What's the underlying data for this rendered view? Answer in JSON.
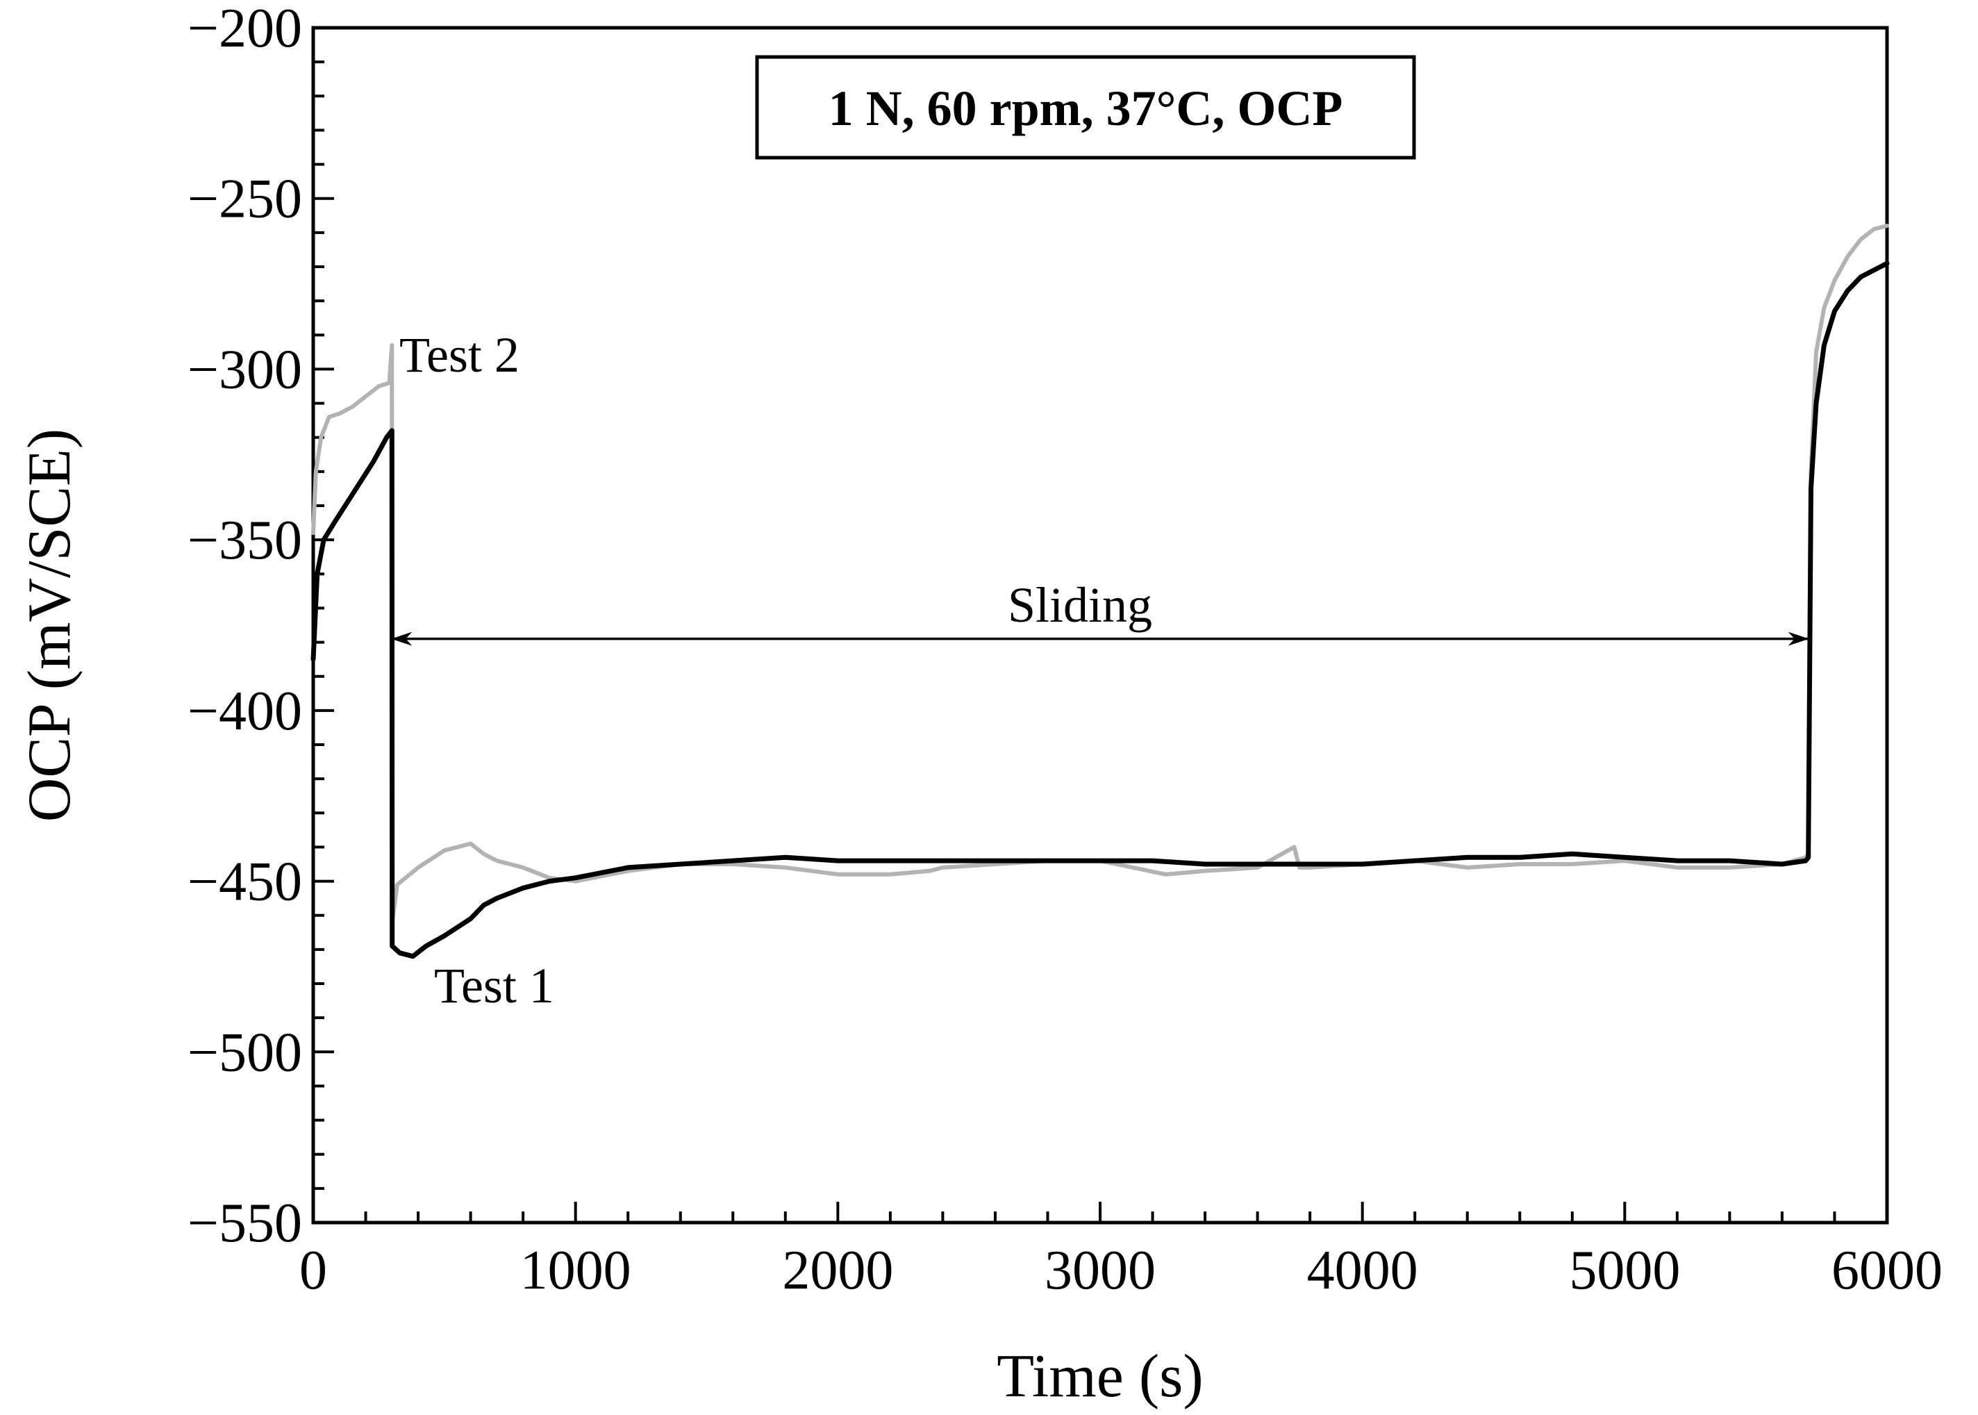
{
  "chart_data": {
    "type": "line",
    "title": "1 N, 60 rpm, 37°C, OCP",
    "xlabel": "Time (s)",
    "ylabel": "OCP (mV/SCE)",
    "xlim": [
      0,
      6000
    ],
    "ylim": [
      -550,
      -200
    ],
    "x_ticks": [
      0,
      1000,
      2000,
      3000,
      4000,
      5000,
      6000
    ],
    "x_tick_labels": [
      "0",
      "1000",
      "2000",
      "3000",
      "4000",
      "5000",
      "6000"
    ],
    "y_ticks": [
      -200,
      -250,
      -300,
      -350,
      -400,
      -450,
      -500,
      -550
    ],
    "y_tick_labels": [
      "−200",
      "−250",
      "−300",
      "−350",
      "−400",
      "−450",
      "−500",
      "−550"
    ],
    "grid": false,
    "series": [
      {
        "name": "Test 2",
        "color": "#b3b3b3",
        "x": [
          0,
          10,
          30,
          60,
          100,
          150,
          200,
          250,
          290,
          300,
          301,
          320,
          400,
          500,
          600,
          650,
          700,
          800,
          900,
          1000,
          1200,
          1400,
          1600,
          1800,
          2000,
          2200,
          2350,
          2400,
          2600,
          2800,
          3000,
          3250,
          3400,
          3600,
          3740,
          3760,
          3800,
          4000,
          4200,
          4400,
          4600,
          4800,
          5000,
          5200,
          5400,
          5600,
          5690,
          5700,
          5710,
          5730,
          5760,
          5800,
          5850,
          5900,
          5950,
          6000
        ],
        "y": [
          -348,
          -330,
          -320,
          -314,
          -313,
          -311,
          -308,
          -305,
          -304,
          -293,
          -462,
          -451,
          -446,
          -441,
          -439,
          -442,
          -444,
          -446,
          -449,
          -450,
          -447,
          -445,
          -445,
          -446,
          -448,
          -448,
          -447,
          -446,
          -445,
          -444,
          -444,
          -448,
          -447,
          -446,
          -440,
          -446,
          -446,
          -445,
          -444,
          -446,
          -445,
          -445,
          -444,
          -446,
          -446,
          -445,
          -443,
          -442,
          -330,
          -295,
          -282,
          -274,
          -267,
          -262,
          -259,
          -258
        ]
      },
      {
        "name": "Test 1",
        "color": "#000000",
        "x": [
          0,
          15,
          40,
          80,
          130,
          180,
          230,
          280,
          300,
          301,
          330,
          380,
          430,
          500,
          600,
          650,
          700,
          800,
          900,
          1000,
          1200,
          1400,
          1600,
          1800,
          2000,
          2200,
          2400,
          2600,
          2800,
          3000,
          3200,
          3400,
          3600,
          3800,
          4000,
          4200,
          4400,
          4600,
          4800,
          5000,
          5200,
          5400,
          5600,
          5690,
          5700,
          5710,
          5730,
          5760,
          5800,
          5850,
          5900,
          5950,
          6000
        ],
        "y": [
          -385,
          -360,
          -350,
          -345,
          -339,
          -333,
          -327,
          -320,
          -318,
          -469,
          -471,
          -472,
          -469,
          -466,
          -461,
          -457,
          -455,
          -452,
          -450,
          -449,
          -446,
          -445,
          -444,
          -443,
          -444,
          -444,
          -444,
          -444,
          -444,
          -444,
          -444,
          -445,
          -445,
          -445,
          -445,
          -444,
          -443,
          -443,
          -442,
          -443,
          -444,
          -444,
          -445,
          -444,
          -443,
          -335,
          -310,
          -293,
          -283,
          -277,
          -273,
          -271,
          -269
        ]
      }
    ],
    "annotations": {
      "test2_label": "Test 2",
      "test1_label": "Test 1",
      "sliding_label": "Sliding",
      "sliding_range": [
        300,
        5700
      ],
      "sliding_level": -379
    }
  }
}
